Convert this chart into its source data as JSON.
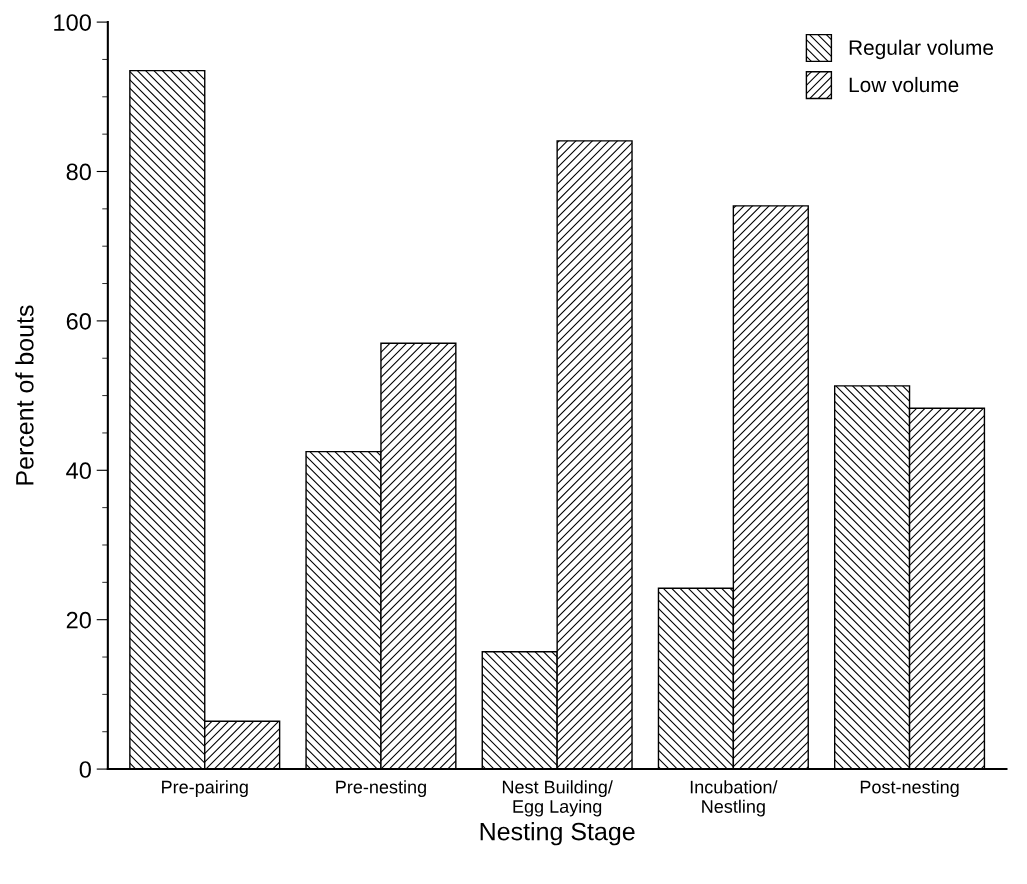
{
  "chart_data": {
    "type": "bar",
    "xlabel": "Nesting Stage",
    "ylabel": "Percent of bouts",
    "categories": [
      "Pre-pairing",
      "Pre-nesting",
      "Nest Building/\nEgg Laying",
      "Incubation/\nNestling",
      "Post-nesting"
    ],
    "series": [
      {
        "name": "Regular volume",
        "color": "#000000",
        "values": [
          93.5,
          42.5,
          15.7,
          24.2,
          51.3
        ]
      },
      {
        "name": "Low volume",
        "color": "#000000",
        "values": [
          6.4,
          57.0,
          84.1,
          75.4,
          48.3
        ]
      }
    ],
    "ylim": [
      0,
      100
    ],
    "yticks": [
      0,
      20,
      40,
      60,
      80,
      100
    ],
    "grid": false,
    "legend": "top right"
  }
}
